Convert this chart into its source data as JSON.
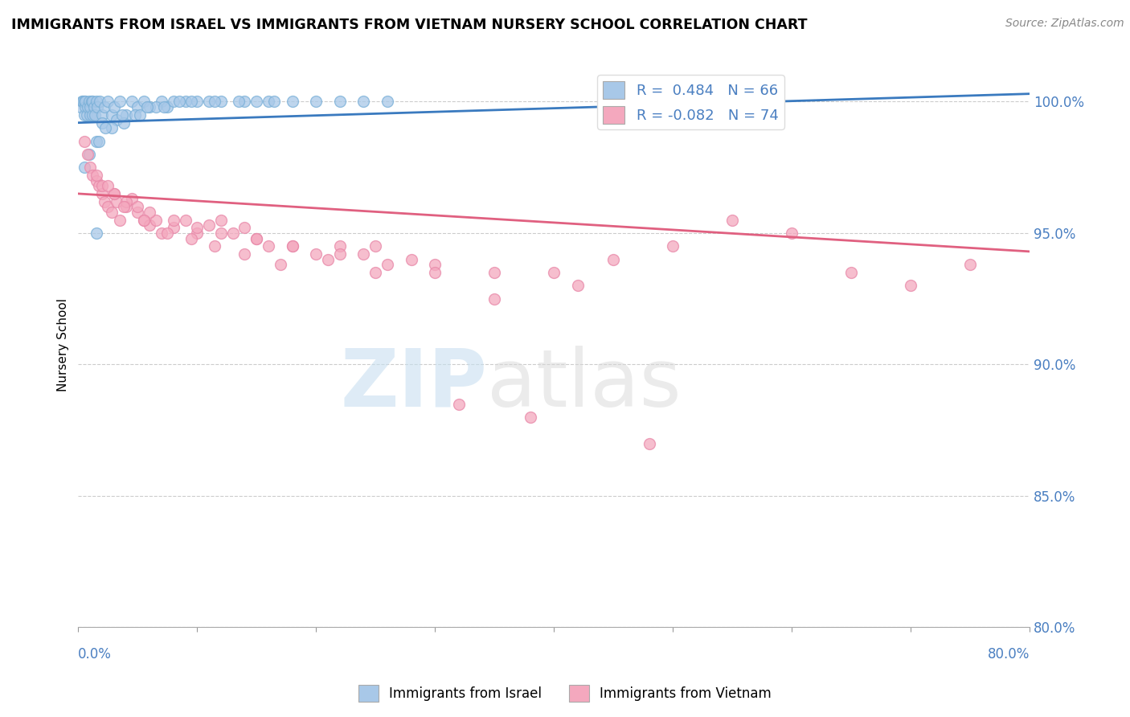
{
  "title": "IMMIGRANTS FROM ISRAEL VS IMMIGRANTS FROM VIETNAM NURSERY SCHOOL CORRELATION CHART",
  "source": "Source: ZipAtlas.com",
  "ylabel": "Nursery School",
  "xlim": [
    0.0,
    80.0
  ],
  "ylim": [
    80.0,
    101.5
  ],
  "yticks": [
    80.0,
    85.0,
    90.0,
    95.0,
    100.0
  ],
  "legend_israel": "R =  0.484   N = 66",
  "legend_vietnam": "R = -0.082   N = 74",
  "israel_color": "#a8c8e8",
  "israel_edge_color": "#7ab0d8",
  "vietnam_color": "#f4a8be",
  "vietnam_edge_color": "#e888a8",
  "israel_line_color": "#3a7abf",
  "vietnam_line_color": "#e06080",
  "israel_scatter_x": [
    0.2,
    0.3,
    0.4,
    0.5,
    0.5,
    0.6,
    0.6,
    0.7,
    0.8,
    0.9,
    1.0,
    1.0,
    1.1,
    1.2,
    1.2,
    1.3,
    1.4,
    1.5,
    1.6,
    1.8,
    2.0,
    2.2,
    2.5,
    2.8,
    3.0,
    3.5,
    4.0,
    4.5,
    5.0,
    5.5,
    6.0,
    7.0,
    7.5,
    8.0,
    9.0,
    10.0,
    11.0,
    12.0,
    14.0,
    15.0,
    16.0,
    18.0,
    20.0,
    22.0,
    24.0,
    26.0,
    2.0,
    3.2,
    4.8,
    6.5,
    8.5,
    1.5,
    2.8,
    3.8,
    5.2,
    7.2,
    9.5,
    11.5,
    13.5,
    16.5,
    0.5,
    0.9,
    1.7,
    2.3,
    3.7,
    5.8
  ],
  "israel_scatter_y": [
    99.8,
    100.0,
    100.0,
    99.5,
    100.0,
    99.8,
    100.0,
    99.5,
    99.8,
    100.0,
    99.5,
    99.8,
    100.0,
    99.5,
    100.0,
    99.8,
    99.5,
    100.0,
    99.8,
    100.0,
    99.5,
    99.8,
    100.0,
    99.5,
    99.8,
    100.0,
    99.5,
    100.0,
    99.8,
    100.0,
    99.8,
    100.0,
    99.8,
    100.0,
    100.0,
    100.0,
    100.0,
    100.0,
    100.0,
    100.0,
    100.0,
    100.0,
    100.0,
    100.0,
    100.0,
    100.0,
    99.2,
    99.3,
    99.5,
    99.8,
    100.0,
    98.5,
    99.0,
    99.2,
    99.5,
    99.8,
    100.0,
    100.0,
    100.0,
    100.0,
    97.5,
    98.0,
    98.5,
    99.0,
    99.5,
    99.8
  ],
  "israel_lowleft_x": [
    1.5
  ],
  "israel_lowleft_y": [
    95.0
  ],
  "vietnam_scatter_x": [
    0.5,
    0.8,
    1.0,
    1.2,
    1.5,
    1.7,
    2.0,
    2.2,
    2.5,
    2.8,
    3.0,
    3.2,
    3.5,
    4.0,
    4.5,
    5.0,
    5.5,
    6.0,
    6.5,
    7.0,
    8.0,
    9.0,
    10.0,
    11.0,
    12.0,
    13.0,
    14.0,
    15.0,
    16.0,
    18.0,
    20.0,
    22.0,
    24.0,
    25.0,
    28.0,
    30.0,
    35.0,
    40.0,
    45.0,
    50.0,
    55.0,
    60.0,
    65.0,
    70.0,
    75.0,
    2.0,
    3.0,
    4.0,
    5.0,
    6.0,
    8.0,
    10.0,
    12.0,
    15.0,
    18.0,
    22.0,
    26.0,
    30.0,
    35.0,
    42.0,
    1.5,
    2.5,
    3.8,
    5.5,
    7.5,
    9.5,
    11.5,
    14.0,
    17.0,
    21.0,
    25.0,
    32.0,
    38.0,
    48.0
  ],
  "vietnam_scatter_y": [
    98.5,
    98.0,
    97.5,
    97.2,
    97.0,
    96.8,
    96.5,
    96.2,
    96.0,
    95.8,
    96.5,
    96.2,
    95.5,
    96.0,
    96.3,
    95.8,
    95.5,
    95.3,
    95.5,
    95.0,
    95.2,
    95.5,
    95.0,
    95.3,
    95.5,
    95.0,
    95.2,
    94.8,
    94.5,
    94.5,
    94.2,
    94.5,
    94.2,
    94.5,
    94.0,
    93.8,
    93.5,
    93.5,
    94.0,
    94.5,
    95.5,
    95.0,
    93.5,
    93.0,
    93.8,
    96.8,
    96.5,
    96.2,
    96.0,
    95.8,
    95.5,
    95.2,
    95.0,
    94.8,
    94.5,
    94.2,
    93.8,
    93.5,
    92.5,
    93.0,
    97.2,
    96.8,
    96.0,
    95.5,
    95.0,
    94.8,
    94.5,
    94.2,
    93.8,
    94.0,
    93.5,
    88.5,
    88.0,
    87.0
  ],
  "israel_trendline_x": [
    0.0,
    80.0
  ],
  "israel_trendline_y": [
    99.2,
    100.3
  ],
  "vietnam_trendline_x": [
    0.0,
    80.0
  ],
  "vietnam_trendline_y": [
    96.5,
    94.3
  ]
}
